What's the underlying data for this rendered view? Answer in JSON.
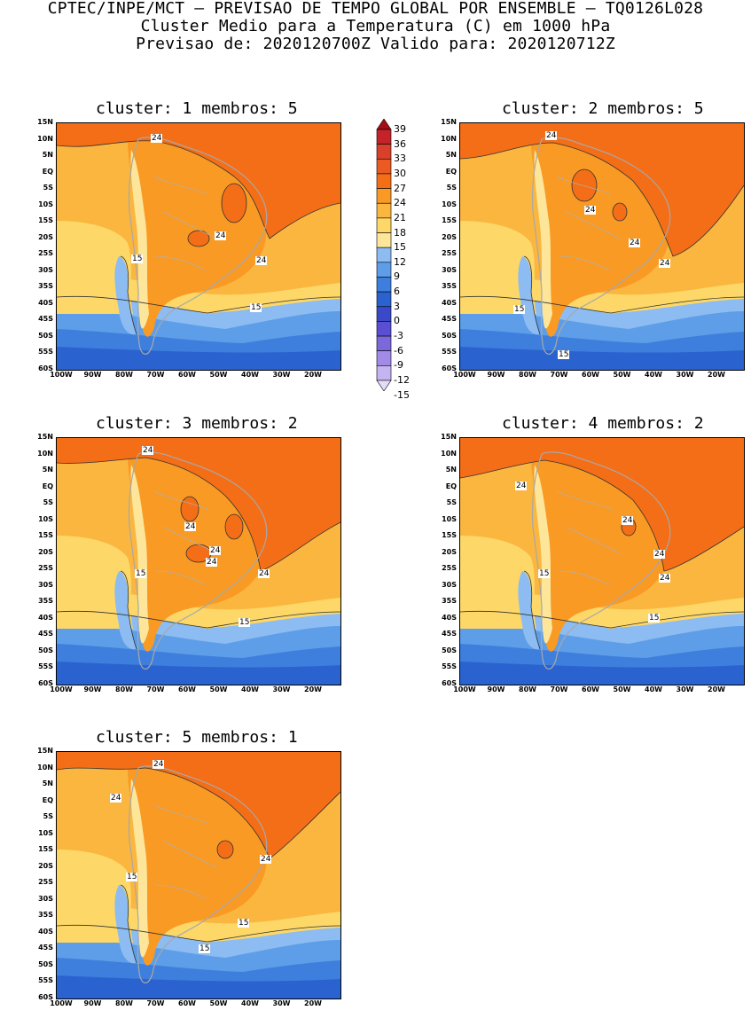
{
  "header": {
    "line1": "CPTEC/INPE/MCT – PREVISAO DE TEMPO GLOBAL POR ENSEMBLE – TQ0126L028",
    "line2": "Cluster Medio para a Temperatura (C) em 1000 hPa",
    "line3": "Previsao de: 2020120700Z   Valido para: 2020120712Z"
  },
  "colorbar": {
    "levels": [
      "39",
      "36",
      "33",
      "30",
      "27",
      "24",
      "21",
      "18",
      "15",
      "12",
      "9",
      "6",
      "3",
      "0",
      "-3",
      "-6",
      "-9",
      "-12",
      "-15"
    ],
    "colors": [
      "#a50f15",
      "#c4232a",
      "#d8402b",
      "#ea5a22",
      "#f46e17",
      "#f99a24",
      "#fbb63f",
      "#fdd868",
      "#fde69a",
      "#8cbcf2",
      "#5e9ee8",
      "#3e7fdd",
      "#2a63cf",
      "#3a49c9",
      "#5a4fd2",
      "#7c68da",
      "#a28be6",
      "#c4b4f0",
      "#e4dcf8"
    ]
  },
  "axes": {
    "lat_labels": [
      "15N",
      "10N",
      "5N",
      "EQ",
      "5S",
      "10S",
      "15S",
      "20S",
      "25S",
      "30S",
      "35S",
      "40S",
      "45S",
      "50S",
      "55S",
      "60S"
    ],
    "lon_labels": [
      "100W",
      "90W",
      "80W",
      "70W",
      "60W",
      "50W",
      "40W",
      "30W",
      "20W"
    ]
  },
  "panels": [
    {
      "title": "cluster: 1   membros: 5",
      "contour_labels": [
        "24",
        "24",
        "24",
        "15",
        "15"
      ]
    },
    {
      "title": "cluster: 2   membros: 5",
      "contour_labels": [
        "24",
        "24",
        "24",
        "24",
        "15",
        "15"
      ]
    },
    {
      "title": "cluster: 3   membros: 2",
      "contour_labels": [
        "24",
        "24",
        "24",
        "24",
        "24",
        "15",
        "15"
      ]
    },
    {
      "title": "cluster: 4   membros: 2",
      "contour_labels": [
        "24",
        "24",
        "24",
        "24",
        "15",
        "15"
      ]
    },
    {
      "title": "cluster: 5   membros: 1",
      "contour_labels": [
        "24",
        "24",
        "24",
        "15",
        "15",
        "15"
      ]
    }
  ]
}
